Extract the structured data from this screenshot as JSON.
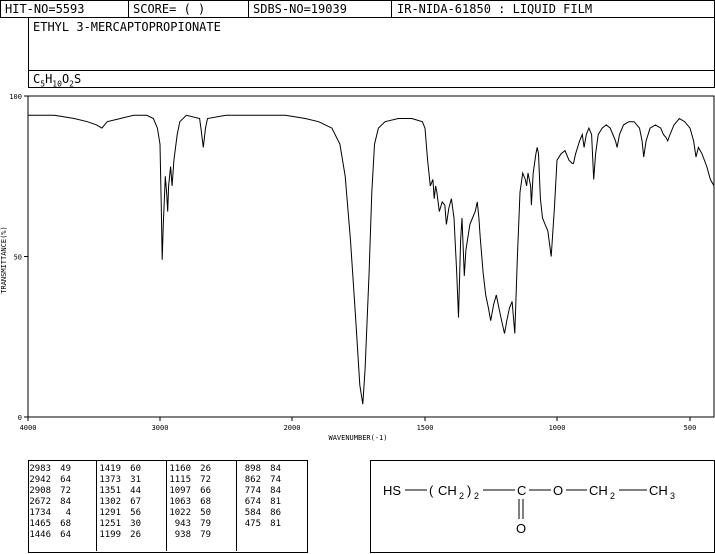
{
  "header": {
    "hit_no": "HIT-NO=5593",
    "score": "SCORE=  (   )",
    "sdbs_no": "SDBS-NO=19039",
    "ir_info": "IR-NIDA-61850 : LIQUID FILM"
  },
  "compound": {
    "name": "ETHYL 3-MERCAPTOPROPIONATE",
    "formula": "C5H10O2S",
    "formula_parts": {
      "c": "C",
      "c_sub": "5",
      "h": "H",
      "h_sub": "10",
      "o": "O",
      "o_sub": "2",
      "s": "S"
    }
  },
  "chart_data": {
    "type": "line",
    "xlabel": "WAVENUMBER(-1)",
    "ylabel": "TRANSMITTANCE(%)",
    "xlim": [
      4000,
      400
    ],
    "ylim": [
      0,
      100
    ],
    "x_ticks": [
      "4000",
      "3000",
      "2000",
      "1500",
      "1000",
      "500"
    ],
    "y_ticks": [
      "100",
      "50",
      "0"
    ],
    "grid": false,
    "series": [
      {
        "points": [
          [
            4000,
            94
          ],
          [
            3800,
            94
          ],
          [
            3650,
            93
          ],
          [
            3550,
            92
          ],
          [
            3480,
            91
          ],
          [
            3440,
            90
          ],
          [
            3400,
            92
          ],
          [
            3300,
            93
          ],
          [
            3200,
            94
          ],
          [
            3100,
            94
          ],
          [
            3050,
            93
          ],
          [
            3020,
            90
          ],
          [
            3000,
            85
          ],
          [
            2990,
            65
          ],
          [
            2983,
            49
          ],
          [
            2975,
            60
          ],
          [
            2960,
            75
          ],
          [
            2950,
            70
          ],
          [
            2942,
            64
          ],
          [
            2935,
            72
          ],
          [
            2920,
            78
          ],
          [
            2908,
            72
          ],
          [
            2895,
            80
          ],
          [
            2870,
            88
          ],
          [
            2850,
            92
          ],
          [
            2800,
            94
          ],
          [
            2700,
            93
          ],
          [
            2690,
            90
          ],
          [
            2672,
            84
          ],
          [
            2655,
            90
          ],
          [
            2640,
            93
          ],
          [
            2500,
            94
          ],
          [
            2300,
            94
          ],
          [
            2150,
            94
          ],
          [
            2050,
            94
          ],
          [
            1950,
            93
          ],
          [
            1900,
            92
          ],
          [
            1850,
            90
          ],
          [
            1820,
            85
          ],
          [
            1800,
            75
          ],
          [
            1780,
            55
          ],
          [
            1760,
            30
          ],
          [
            1745,
            10
          ],
          [
            1734,
            4
          ],
          [
            1725,
            15
          ],
          [
            1710,
            45
          ],
          [
            1700,
            70
          ],
          [
            1690,
            85
          ],
          [
            1675,
            90
          ],
          [
            1650,
            92
          ],
          [
            1600,
            93
          ],
          [
            1550,
            93
          ],
          [
            1510,
            92
          ],
          [
            1500,
            90
          ],
          [
            1490,
            80
          ],
          [
            1480,
            72
          ],
          [
            1470,
            74
          ],
          [
            1465,
            68
          ],
          [
            1460,
            72
          ],
          [
            1455,
            70
          ],
          [
            1446,
            64
          ],
          [
            1435,
            67
          ],
          [
            1425,
            66
          ],
          [
            1419,
            60
          ],
          [
            1410,
            65
          ],
          [
            1400,
            68
          ],
          [
            1390,
            62
          ],
          [
            1380,
            45
          ],
          [
            1373,
            31
          ],
          [
            1365,
            55
          ],
          [
            1360,
            62
          ],
          [
            1351,
            44
          ],
          [
            1345,
            52
          ],
          [
            1330,
            60
          ],
          [
            1320,
            62
          ],
          [
            1310,
            64
          ],
          [
            1302,
            67
          ],
          [
            1296,
            62
          ],
          [
            1291,
            56
          ],
          [
            1280,
            45
          ],
          [
            1270,
            38
          ],
          [
            1260,
            34
          ],
          [
            1251,
            30
          ],
          [
            1240,
            35
          ],
          [
            1230,
            38
          ],
          [
            1220,
            34
          ],
          [
            1210,
            30
          ],
          [
            1199,
            26
          ],
          [
            1190,
            30
          ],
          [
            1180,
            34
          ],
          [
            1170,
            36
          ],
          [
            1160,
            26
          ],
          [
            1150,
            50
          ],
          [
            1140,
            70
          ],
          [
            1130,
            76
          ],
          [
            1120,
            74
          ],
          [
            1115,
            72
          ],
          [
            1110,
            76
          ],
          [
            1100,
            72
          ],
          [
            1097,
            66
          ],
          [
            1090,
            76
          ],
          [
            1080,
            82
          ],
          [
            1075,
            84
          ],
          [
            1070,
            82
          ],
          [
            1063,
            68
          ],
          [
            1055,
            62
          ],
          [
            1045,
            60
          ],
          [
            1035,
            58
          ],
          [
            1022,
            50
          ],
          [
            1010,
            65
          ],
          [
            1000,
            80
          ],
          [
            985,
            82
          ],
          [
            970,
            83
          ],
          [
            955,
            80
          ],
          [
            943,
            79
          ],
          [
            938,
            79
          ],
          [
            930,
            82
          ],
          [
            915,
            86
          ],
          [
            905,
            88
          ],
          [
            898,
            84
          ],
          [
            890,
            88
          ],
          [
            880,
            90
          ],
          [
            870,
            88
          ],
          [
            862,
            74
          ],
          [
            855,
            82
          ],
          [
            845,
            88
          ],
          [
            830,
            90
          ],
          [
            815,
            91
          ],
          [
            800,
            90
          ],
          [
            790,
            88
          ],
          [
            780,
            86
          ],
          [
            774,
            84
          ],
          [
            765,
            88
          ],
          [
            750,
            91
          ],
          [
            730,
            92
          ],
          [
            710,
            92
          ],
          [
            690,
            90
          ],
          [
            680,
            86
          ],
          [
            674,
            81
          ],
          [
            665,
            86
          ],
          [
            650,
            90
          ],
          [
            630,
            91
          ],
          [
            610,
            90
          ],
          [
            600,
            88
          ],
          [
            590,
            87
          ],
          [
            584,
            86
          ],
          [
            575,
            88
          ],
          [
            560,
            91
          ],
          [
            540,
            93
          ],
          [
            520,
            92
          ],
          [
            500,
            90
          ],
          [
            485,
            86
          ],
          [
            475,
            81
          ],
          [
            465,
            84
          ],
          [
            450,
            82
          ],
          [
            430,
            78
          ],
          [
            415,
            74
          ],
          [
            400,
            72
          ]
        ]
      }
    ]
  },
  "peaks": {
    "columns": [
      [
        [
          "2983",
          "49"
        ],
        [
          "2942",
          "64"
        ],
        [
          "2908",
          "72"
        ],
        [
          "2672",
          "84"
        ],
        [
          "1734",
          "4"
        ],
        [
          "1465",
          "68"
        ],
        [
          "1446",
          "64"
        ]
      ],
      [
        [
          "1419",
          "60"
        ],
        [
          "1373",
          "31"
        ],
        [
          "1351",
          "44"
        ],
        [
          "1302",
          "67"
        ],
        [
          "1291",
          "56"
        ],
        [
          "1251",
          "30"
        ],
        [
          "1199",
          "26"
        ]
      ],
      [
        [
          "1160",
          "26"
        ],
        [
          "1115",
          "72"
        ],
        [
          "1097",
          "66"
        ],
        [
          "1063",
          "68"
        ],
        [
          "1022",
          "50"
        ],
        [
          "943",
          "79"
        ],
        [
          "938",
          "79"
        ]
      ],
      [
        [
          "898",
          "84"
        ],
        [
          "862",
          "74"
        ],
        [
          "774",
          "84"
        ],
        [
          "674",
          "81"
        ],
        [
          "584",
          "86"
        ],
        [
          "475",
          "81"
        ]
      ]
    ]
  },
  "structure": {
    "hs": "HS",
    "ch": "CH",
    "sub2": "2",
    "sub2b": "2",
    "paren_open": "(",
    "paren_close": ")",
    "c": "C",
    "o_ester": "O",
    "ch2": "CH",
    "sub2c": "2",
    "ch3": "CH",
    "sub3": "3",
    "o_carbonyl": "O"
  }
}
